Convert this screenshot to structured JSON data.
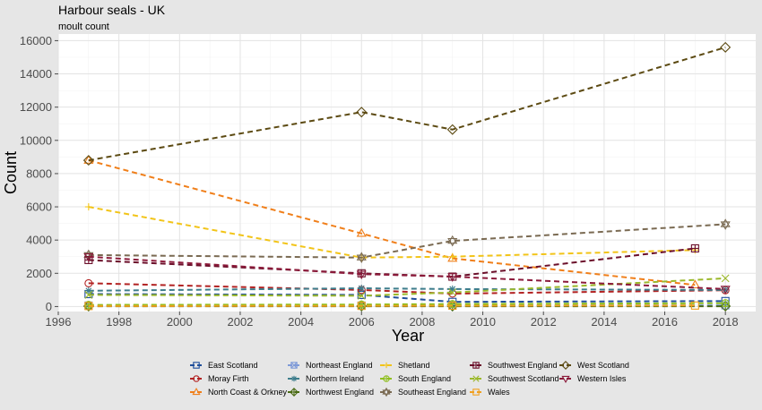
{
  "chart_data": {
    "type": "line",
    "title": "Harbour seals - UK",
    "subtitle": "moult count",
    "xlabel": "Year",
    "ylabel": "Count",
    "xlim": [
      1996,
      2019
    ],
    "ylim": [
      -300,
      16400
    ],
    "x_ticks": [
      1996,
      1998,
      2000,
      2002,
      2004,
      2006,
      2008,
      2010,
      2012,
      2014,
      2016,
      2018
    ],
    "y_ticks": [
      0,
      2000,
      4000,
      6000,
      8000,
      10000,
      12000,
      14000,
      16000
    ],
    "grid": true,
    "legend_position": "bottom",
    "series": [
      {
        "name": "East Scotland",
        "color": "#1f4e9a",
        "marker": "square",
        "x": [
          1997,
          2006,
          2009,
          2018
        ],
        "values": [
          750,
          700,
          280,
          330
        ]
      },
      {
        "name": "Moray Firth",
        "color": "#b22222",
        "marker": "circle",
        "x": [
          1997,
          2006,
          2009,
          2018
        ],
        "values": [
          1400,
          1000,
          780,
          980
        ]
      },
      {
        "name": "North Coast & Orkney",
        "color": "#f07f1a",
        "marker": "triangle-up",
        "x": [
          1997,
          2006,
          2009,
          2017
        ],
        "values": [
          8800,
          4400,
          2900,
          1300
        ]
      },
      {
        "name": "Northeast England",
        "color": "#7f9bd8",
        "marker": "square-cross",
        "x": [
          1997,
          2006,
          2009,
          2018
        ],
        "values": [
          60,
          60,
          70,
          70
        ]
      },
      {
        "name": "Northern Ireland",
        "color": "#3d7d8c",
        "marker": "star",
        "x": [
          1997,
          2006,
          2009,
          2018
        ],
        "values": [
          950,
          1100,
          1050,
          1000
        ]
      },
      {
        "name": "Northwest England",
        "color": "#4a6b14",
        "marker": "diamond-plus",
        "x": [
          1997,
          2006,
          2009,
          2018
        ],
        "values": [
          20,
          20,
          20,
          20
        ]
      },
      {
        "name": "Shetland",
        "color": "#f2c418",
        "marker": "plus",
        "x": [
          1997,
          2006,
          2009,
          2017
        ],
        "values": [
          6000,
          2950,
          3000,
          3400
        ]
      },
      {
        "name": "South England",
        "color": "#8fbf1e",
        "marker": "circle-plus",
        "x": [
          1997,
          2006,
          2009,
          2018
        ],
        "values": [
          100,
          120,
          150,
          200
        ]
      },
      {
        "name": "Southeast England",
        "color": "#7a6a52",
        "marker": "star-of-david",
        "x": [
          1997,
          2006,
          2009,
          2018
        ],
        "values": [
          3100,
          2950,
          3950,
          4950
        ]
      },
      {
        "name": "Southwest England",
        "color": "#6b0f2a",
        "marker": "square-plus",
        "x": [
          1997,
          2006,
          2009,
          2017
        ],
        "values": [
          2800,
          2000,
          1800,
          3500
        ]
      },
      {
        "name": "Southwest Scotland",
        "color": "#9bb82a",
        "marker": "x",
        "x": [
          1997,
          2006,
          2009,
          2018
        ],
        "values": [
          700,
          650,
          850,
          1700
        ]
      },
      {
        "name": "Wales",
        "color": "#f0a020",
        "marker": "square",
        "x": [
          1997,
          2006,
          2009,
          2017
        ],
        "values": [
          30,
          40,
          50,
          60
        ]
      },
      {
        "name": "West Scotland",
        "color": "#5c4a12",
        "marker": "diamond",
        "x": [
          1997,
          2006,
          2009,
          2018
        ],
        "values": [
          8800,
          11700,
          10650,
          15600
        ]
      },
      {
        "name": "Western Isles",
        "color": "#8b1a3a",
        "marker": "triangle-down",
        "x": [
          1997,
          2006,
          2009,
          2018
        ],
        "values": [
          3000,
          1950,
          1800,
          1050
        ]
      }
    ]
  }
}
